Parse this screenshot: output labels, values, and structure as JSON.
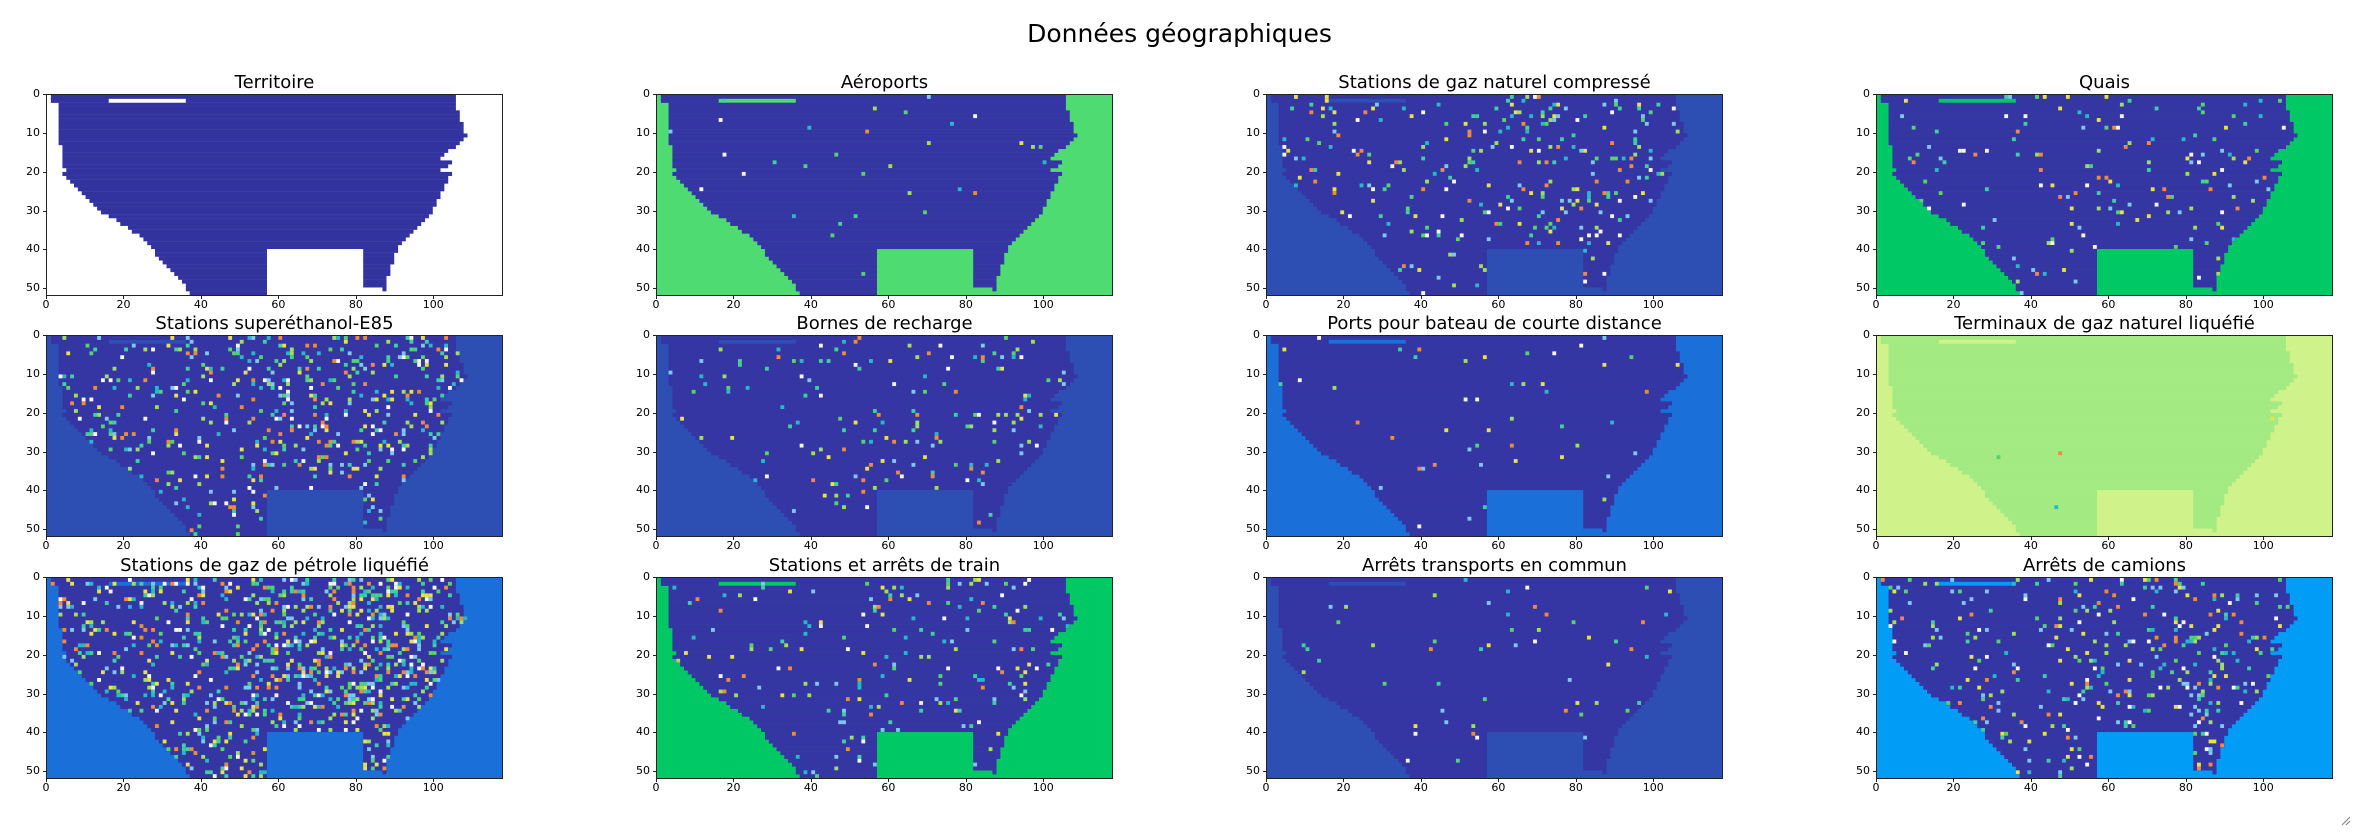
{
  "figure": {
    "suptitle": "Données géographiques"
  },
  "chart_data": [
    {
      "type": "heatmap",
      "title": "Territoire",
      "x_ticks": [
        0,
        20,
        40,
        60,
        80,
        100
      ],
      "y_ticks": [
        0,
        10,
        20,
        30,
        40,
        50
      ],
      "grid_shape": [
        52,
        118
      ],
      "xlim": [
        0,
        118
      ],
      "ylim": [
        52,
        0
      ],
      "colors": {
        "land": "#3333a0",
        "outside": "#ffffff"
      },
      "hotspot_density": 0
    },
    {
      "type": "heatmap",
      "title": "Aéroports",
      "x_ticks": [
        0,
        20,
        40,
        60,
        80,
        100
      ],
      "y_ticks": [
        0,
        10,
        20,
        30,
        40,
        50
      ],
      "grid_shape": [
        52,
        118
      ],
      "xlim": [
        0,
        118
      ],
      "ylim": [
        52,
        0
      ],
      "colors": {
        "land": "#3535a3",
        "outside": "#4ddb72"
      },
      "hotspot_density": 0.006
    },
    {
      "type": "heatmap",
      "title": "Stations de gaz naturel compressé",
      "x_ticks": [
        0,
        20,
        40,
        60,
        80,
        100
      ],
      "y_ticks": [
        0,
        10,
        20,
        30,
        40,
        50
      ],
      "grid_shape": [
        52,
        118
      ],
      "xlim": [
        0,
        118
      ],
      "ylim": [
        52,
        0
      ],
      "colors": {
        "land": "#3535a3",
        "outside": "#2d4fb3"
      },
      "hotspot_density": 0.05
    },
    {
      "type": "heatmap",
      "title": "Quais",
      "x_ticks": [
        0,
        20,
        40,
        60,
        80,
        100
      ],
      "y_ticks": [
        0,
        10,
        20,
        30,
        40,
        50
      ],
      "grid_shape": [
        52,
        118
      ],
      "xlim": [
        0,
        118
      ],
      "ylim": [
        52,
        0
      ],
      "colors": {
        "land": "#3535a3",
        "outside": "#00c864"
      },
      "hotspot_density": 0.03
    },
    {
      "type": "heatmap",
      "title": "Stations superéthanol-E85",
      "x_ticks": [
        0,
        20,
        40,
        60,
        80,
        100
      ],
      "y_ticks": [
        0,
        10,
        20,
        30,
        40,
        50
      ],
      "grid_shape": [
        52,
        118
      ],
      "xlim": [
        0,
        118
      ],
      "ylim": [
        52,
        0
      ],
      "colors": {
        "land": "#3535a3",
        "outside": "#2d4fb3"
      },
      "hotspot_density": 0.09
    },
    {
      "type": "heatmap",
      "title": "Bornes de recharge",
      "x_ticks": [
        0,
        20,
        40,
        60,
        80,
        100
      ],
      "y_ticks": [
        0,
        10,
        20,
        30,
        40,
        50
      ],
      "grid_shape": [
        52,
        118
      ],
      "xlim": [
        0,
        118
      ],
      "ylim": [
        52,
        0
      ],
      "colors": {
        "land": "#3535a3",
        "outside": "#2d4fb3"
      },
      "hotspot_density": 0.03
    },
    {
      "type": "heatmap",
      "title": "Ports pour bateau de courte distance",
      "x_ticks": [
        0,
        20,
        40,
        60,
        80,
        100
      ],
      "y_ticks": [
        0,
        10,
        20,
        30,
        40,
        50
      ],
      "grid_shape": [
        52,
        118
      ],
      "xlim": [
        0,
        118
      ],
      "ylim": [
        52,
        0
      ],
      "colors": {
        "land": "#3535a3",
        "outside": "#1a6fd9"
      },
      "hotspot_density": 0.01
    },
    {
      "type": "heatmap",
      "title": "Terminaux de gaz naturel liquéfié",
      "x_ticks": [
        0,
        20,
        40,
        60,
        80,
        100
      ],
      "y_ticks": [
        0,
        10,
        20,
        30,
        40,
        50
      ],
      "grid_shape": [
        52,
        118
      ],
      "xlim": [
        0,
        118
      ],
      "ylim": [
        52,
        0
      ],
      "colors": {
        "land": "#a3ea82",
        "outside": "#cff28a"
      },
      "hotspot_density": 0.002
    },
    {
      "type": "heatmap",
      "title": "Stations de gaz de pétrole liquéfié",
      "x_ticks": [
        0,
        20,
        40,
        60,
        80,
        100
      ],
      "y_ticks": [
        0,
        10,
        20,
        30,
        40,
        50
      ],
      "grid_shape": [
        52,
        118
      ],
      "xlim": [
        0,
        118
      ],
      "ylim": [
        52,
        0
      ],
      "colors": {
        "land": "#3535a3",
        "outside": "#1a6fd9"
      },
      "hotspot_density": 0.16
    },
    {
      "type": "heatmap",
      "title": "Stations et arrêts de train",
      "x_ticks": [
        0,
        20,
        40,
        60,
        80,
        100
      ],
      "y_ticks": [
        0,
        10,
        20,
        30,
        40,
        50
      ],
      "grid_shape": [
        52,
        118
      ],
      "xlim": [
        0,
        118
      ],
      "ylim": [
        52,
        0
      ],
      "colors": {
        "land": "#3535a3",
        "outside": "#00c864"
      },
      "hotspot_density": 0.04
    },
    {
      "type": "heatmap",
      "title": "Arrêts transports en commun",
      "x_ticks": [
        0,
        20,
        40,
        60,
        80,
        100
      ],
      "y_ticks": [
        0,
        10,
        20,
        30,
        40,
        50
      ],
      "grid_shape": [
        52,
        118
      ],
      "xlim": [
        0,
        118
      ],
      "ylim": [
        52,
        0
      ],
      "colors": {
        "land": "#3535a3",
        "outside": "#2d4fb3"
      },
      "hotspot_density": 0.008
    },
    {
      "type": "heatmap",
      "title": "Arrêts de camions",
      "x_ticks": [
        0,
        20,
        40,
        60,
        80,
        100
      ],
      "y_ticks": [
        0,
        10,
        20,
        30,
        40,
        50
      ],
      "grid_shape": [
        52,
        118
      ],
      "xlim": [
        0,
        118
      ],
      "ylim": [
        52,
        0
      ],
      "colors": {
        "land": "#3535a3",
        "outside": "#009cf5"
      },
      "hotspot_density": 0.07
    }
  ]
}
